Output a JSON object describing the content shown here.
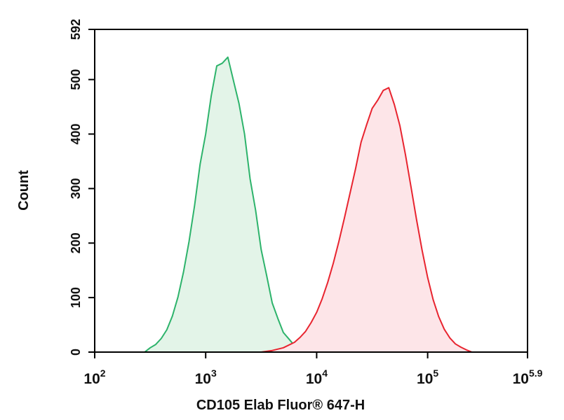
{
  "chart_data": {
    "type": "histogram-overlay",
    "x_label": "CD105 Elab Fluor® 647-H",
    "y_label": "Count",
    "xtick_base": "10",
    "xlim": [
      2,
      5.9
    ],
    "xticks": [
      2,
      3,
      4,
      5,
      5.9
    ],
    "ylim": [
      0,
      592
    ],
    "yticks": [
      0,
      100,
      200,
      300,
      400,
      500,
      592
    ],
    "series": [
      {
        "color": "#2db36b",
        "fill": "#e3f4e8",
        "x": [
          2.45,
          2.5,
          2.55,
          2.6,
          2.65,
          2.7,
          2.75,
          2.8,
          2.85,
          2.9,
          2.95,
          3.0,
          3.05,
          3.1,
          3.15,
          3.2,
          3.25,
          3.3,
          3.35,
          3.4,
          3.45,
          3.5,
          3.55,
          3.6,
          3.65,
          3.7,
          3.75,
          3.8,
          3.85,
          3.9,
          3.95,
          4.0
        ],
        "values": [
          0,
          8,
          14,
          25,
          41,
          66,
          101,
          147,
          203,
          269,
          345,
          400,
          470,
          525,
          530,
          541,
          498,
          456,
          400,
          318,
          260,
          188,
          140,
          90,
          62,
          36,
          24,
          12,
          8,
          4,
          2,
          0
        ]
      },
      {
        "color": "#e8242f",
        "fill": "#fde5e8",
        "x": [
          3.5,
          3.6,
          3.7,
          3.8,
          3.85,
          3.9,
          3.95,
          4.0,
          4.05,
          4.1,
          4.15,
          4.2,
          4.25,
          4.3,
          4.35,
          4.4,
          4.45,
          4.5,
          4.55,
          4.6,
          4.65,
          4.7,
          4.75,
          4.8,
          4.85,
          4.9,
          4.95,
          5.0,
          5.05,
          5.1,
          5.15,
          5.2,
          5.25,
          5.3,
          5.35,
          5.4
        ],
        "values": [
          0,
          3,
          8,
          18,
          27,
          38,
          54,
          73,
          98,
          128,
          163,
          203,
          246,
          291,
          336,
          385,
          417,
          447,
          462,
          480,
          485,
          454,
          415,
          362,
          303,
          243,
          187,
          137,
          96,
          65,
          42,
          26,
          15,
          9,
          4,
          0
        ]
      }
    ]
  }
}
